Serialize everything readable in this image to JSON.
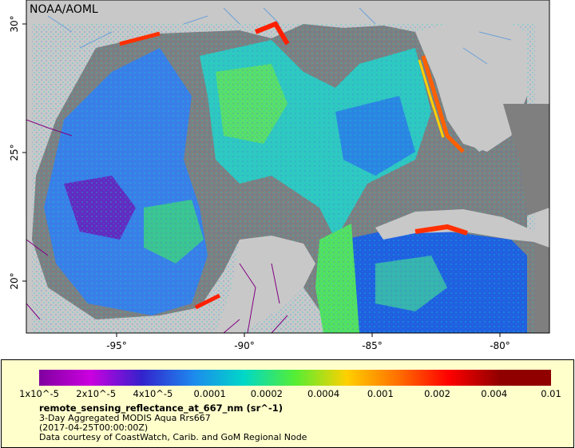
{
  "map": {
    "credit_label": "NOAA/AOML",
    "lon_labels": [
      "-95°",
      "-90°",
      "-85°",
      "-80°"
    ],
    "lat_labels": [
      "30°",
      "25°",
      "20°"
    ],
    "colors": {
      "land": "#c8c8c8",
      "no_data": "#7f7f7f",
      "border": "#800080",
      "river": "#6aa0d8"
    }
  },
  "legend": {
    "tick_labels": [
      "1x10^-5",
      "2x10^-5",
      "4x10^-5",
      "0.0001",
      "0.0002",
      "0.0004",
      "0.001",
      "0.002",
      "0.004",
      "0.01"
    ],
    "palette": [
      "#8000a0",
      "#cc00e0",
      "#3322cc",
      "#1e88ee",
      "#00d8c8",
      "#55ee33",
      "#ffd000",
      "#ff7000",
      "#ff0000",
      "#900000"
    ],
    "variable": "remote_sensing_reflectance_at_667_nm (sr^-1)",
    "subtitle": "3-Day Aggregated MODIS Aqua Rrs667",
    "date": "(2017-04-25T00:00:00Z)",
    "credit": "Data courtesy of CoastWatch, Carib. and GoM Regional Node"
  }
}
